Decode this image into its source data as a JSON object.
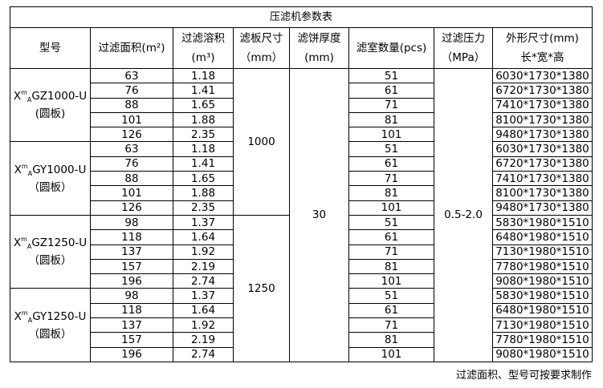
{
  "title": "压滤机参数表",
  "headers": [
    {
      "l1": "型号",
      "l2": ""
    },
    {
      "l1": "过滤面积(m²)",
      "l2": ""
    },
    {
      "l1": "过滤溶积",
      "l2": "(m³)"
    },
    {
      "l1": "滤板尺寸",
      "l2": "（mm）"
    },
    {
      "l1": "滤饼厚度",
      "l2": "(mm)"
    },
    {
      "l1": "滤室数量(pcs)",
      "l2": ""
    },
    {
      "l1": "过滤压力",
      "l2": "（MPa）"
    },
    {
      "l1": "外形尺寸(mm)",
      "l2": "长*宽*高"
    }
  ],
  "cake_thickness": "30",
  "pressure": "0.5-2.0",
  "groups": [
    {
      "model": {
        "prefix": "X",
        "sup": "m",
        "sub": "A",
        "rest": "GZ1000-U",
        "note": "(圆板)"
      },
      "plate": "1000",
      "rows": [
        [
          "63",
          "1.18",
          "51",
          "6030*1730*1380"
        ],
        [
          "76",
          "1.41",
          "61",
          "6720*1730*1380"
        ],
        [
          "88",
          "1.65",
          "71",
          "7410*1730*1380"
        ],
        [
          "101",
          "1.88",
          "81",
          "8100*1730*1380"
        ],
        [
          "126",
          "2.35",
          "101",
          "9480*1730*1380"
        ]
      ]
    },
    {
      "model": {
        "prefix": "X",
        "sup": "m",
        "sub": "A",
        "rest": "GY1000-U",
        "note": "（圆板）"
      },
      "plate": "1000",
      "rows": [
        [
          "63",
          "1.18",
          "51",
          "6030*1730*1380"
        ],
        [
          "76",
          "1.41",
          "61",
          "6720*1730*1380"
        ],
        [
          "88",
          "1.65",
          "71",
          "7410*1730*1380"
        ],
        [
          "101",
          "1.88",
          "81",
          "8100*1730*1380"
        ],
        [
          "126",
          "2.35",
          "101",
          "9480*1730*1380"
        ]
      ]
    },
    {
      "model": {
        "prefix": "X",
        "sup": "m",
        "sub": "A",
        "rest": "GZ1250-U",
        "note": "（圆板）"
      },
      "plate": "1250",
      "rows": [
        [
          "98",
          "1.37",
          "51",
          "5830*1980*1510"
        ],
        [
          "118",
          "1.64",
          "61",
          "6480*1980*1510"
        ],
        [
          "137",
          "1.92",
          "71",
          "7130*1980*1510"
        ],
        [
          "157",
          "2.19",
          "81",
          "7780*1980*1510"
        ],
        [
          "196",
          "2.74",
          "101",
          "9080*1980*1510"
        ]
      ]
    },
    {
      "model": {
        "prefix": "X",
        "sup": "m",
        "sub": "A",
        "rest": "GY1250-U",
        "note": "（圆板）"
      },
      "plate": "1250",
      "rows": [
        [
          "98",
          "1.37",
          "51",
          "5830*1980*1510"
        ],
        [
          "118",
          "1.64",
          "61",
          "6480*1980*1510"
        ],
        [
          "137",
          "1.92",
          "71",
          "7130*1980*1510"
        ],
        [
          "157",
          "2.19",
          "81",
          "7780*1980*1510"
        ],
        [
          "196",
          "2.74",
          "101",
          "9080*1980*1510"
        ]
      ]
    }
  ],
  "note": "过滤面积、型号可按要求制作"
}
